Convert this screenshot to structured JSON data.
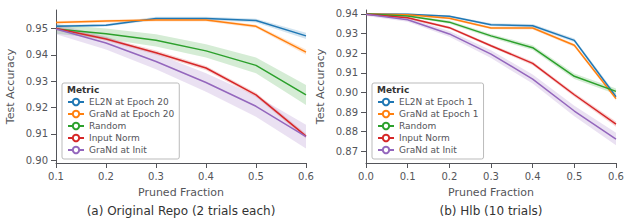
{
  "chart_data": [
    {
      "type": "line",
      "title": "(a) Original Repo (2 trials each)",
      "xlabel": "Pruned Fraction",
      "ylabel": "Test Accuracy",
      "xlim": [
        0.1,
        0.6
      ],
      "ylim": [
        0.899,
        0.957
      ],
      "xticks": [
        0.1,
        0.2,
        0.3,
        0.4,
        0.5,
        0.6
      ],
      "yticks": [
        {
          "value": 0.9,
          "label": "0.90"
        },
        0.91,
        0.92,
        0.93,
        0.94,
        0.95
      ],
      "legend_title": "Metric",
      "legend": "lower left",
      "grid": false,
      "x": [
        0.1,
        0.2,
        0.3,
        0.4,
        0.5,
        0.6
      ],
      "series": [
        {
          "name": "EL2N at Epoch 20",
          "color": "#1f77b4",
          "values": [
            0.9508,
            0.9512,
            0.9538,
            0.9538,
            0.953,
            0.9472
          ],
          "lower": [
            0.9503,
            0.9507,
            0.9532,
            0.9532,
            0.9523,
            0.946
          ],
          "upper": [
            0.9513,
            0.9517,
            0.9544,
            0.9544,
            0.9537,
            0.9484
          ]
        },
        {
          "name": "GraNd at Epoch 20",
          "color": "#ff7f0e",
          "values": [
            0.9523,
            0.9528,
            0.9532,
            0.9532,
            0.9508,
            0.941
          ],
          "lower": [
            0.9518,
            0.9523,
            0.9526,
            0.9526,
            0.9502,
            0.94
          ],
          "upper": [
            0.9528,
            0.9533,
            0.9538,
            0.9538,
            0.9514,
            0.942
          ]
        },
        {
          "name": "Random",
          "color": "#2ca02c",
          "values": [
            0.9498,
            0.948,
            0.9455,
            0.9415,
            0.936,
            0.9248
          ],
          "lower": [
            0.948,
            0.946,
            0.9432,
            0.939,
            0.933,
            0.921
          ],
          "upper": [
            0.9516,
            0.95,
            0.9478,
            0.944,
            0.939,
            0.9286
          ]
        },
        {
          "name": "Input Norm",
          "color": "#d62728",
          "values": [
            0.95,
            0.946,
            0.9408,
            0.935,
            0.9248,
            0.9092
          ],
          "lower": [
            0.9493,
            0.9453,
            0.94,
            0.9342,
            0.924,
            0.9083
          ],
          "upper": [
            0.9507,
            0.9467,
            0.9416,
            0.9358,
            0.9256,
            0.9101
          ]
        },
        {
          "name": "GraNd at Init",
          "color": "#9467bd",
          "values": [
            0.9498,
            0.9445,
            0.9375,
            0.9295,
            0.9205,
            0.909
          ],
          "lower": [
            0.9478,
            0.942,
            0.9345,
            0.926,
            0.9165,
            0.9045
          ],
          "upper": [
            0.9518,
            0.947,
            0.9405,
            0.933,
            0.9245,
            0.9135
          ]
        }
      ]
    },
    {
      "type": "line",
      "title": "(b) Hlb (10 trials)",
      "xlabel": "Pruned Fraction",
      "ylabel": "Test Accuracy",
      "xlim": [
        0.0,
        0.6
      ],
      "ylim": [
        0.864,
        0.942
      ],
      "xticks": [
        {
          "value": 0,
          "label": "0.0"
        },
        0.1,
        0.2,
        0.3,
        0.4,
        0.5,
        0.6
      ],
      "yticks": [
        0.87,
        0.88,
        0.89,
        {
          "value": 0.9,
          "label": "0.90"
        },
        0.91,
        0.92,
        0.93,
        0.94
      ],
      "legend_title": "Metric",
      "legend": "lower left",
      "grid": false,
      "x": [
        0.0,
        0.1,
        0.2,
        0.3,
        0.4,
        0.5,
        0.6
      ],
      "series": [
        {
          "name": "EL2N at Epoch 1",
          "color": "#1f77b4",
          "values": [
            0.94,
            0.9398,
            0.9388,
            0.9345,
            0.934,
            0.9265,
            0.8978
          ],
          "lower": [
            0.9396,
            0.9394,
            0.9383,
            0.9338,
            0.9332,
            0.9255,
            0.8965
          ],
          "upper": [
            0.9404,
            0.9402,
            0.9393,
            0.9352,
            0.9348,
            0.9275,
            0.8991
          ]
        },
        {
          "name": "GraNd at Epoch 1",
          "color": "#ff7f0e",
          "values": [
            0.94,
            0.9396,
            0.9378,
            0.9328,
            0.9328,
            0.924,
            0.8968
          ],
          "lower": [
            0.9396,
            0.9392,
            0.9372,
            0.9322,
            0.932,
            0.9232,
            0.8958
          ],
          "upper": [
            0.9404,
            0.94,
            0.9384,
            0.9334,
            0.9336,
            0.9248,
            0.8978
          ]
        },
        {
          "name": "Random",
          "color": "#2ca02c",
          "values": [
            0.94,
            0.939,
            0.9358,
            0.9288,
            0.9228,
            0.9082,
            0.9005
          ],
          "lower": [
            0.9395,
            0.9385,
            0.935,
            0.9278,
            0.9216,
            0.9068,
            0.899
          ],
          "upper": [
            0.9405,
            0.9395,
            0.9366,
            0.9298,
            0.924,
            0.9096,
            0.902
          ]
        },
        {
          "name": "Input Norm",
          "color": "#d62728",
          "values": [
            0.9398,
            0.938,
            0.933,
            0.9238,
            0.9148,
            0.8988,
            0.8838
          ],
          "lower": [
            0.9393,
            0.9374,
            0.9323,
            0.923,
            0.9138,
            0.8978,
            0.8825
          ],
          "upper": [
            0.9403,
            0.9386,
            0.9337,
            0.9246,
            0.9158,
            0.8998,
            0.8851
          ]
        },
        {
          "name": "GraNd at Init",
          "color": "#9467bd",
          "values": [
            0.9398,
            0.937,
            0.9298,
            0.9195,
            0.9068,
            0.8905,
            0.8762
          ],
          "lower": [
            0.939,
            0.936,
            0.9283,
            0.9175,
            0.9045,
            0.8878,
            0.873
          ],
          "upper": [
            0.9406,
            0.938,
            0.9313,
            0.9215,
            0.9091,
            0.8932,
            0.8794
          ]
        }
      ]
    }
  ]
}
